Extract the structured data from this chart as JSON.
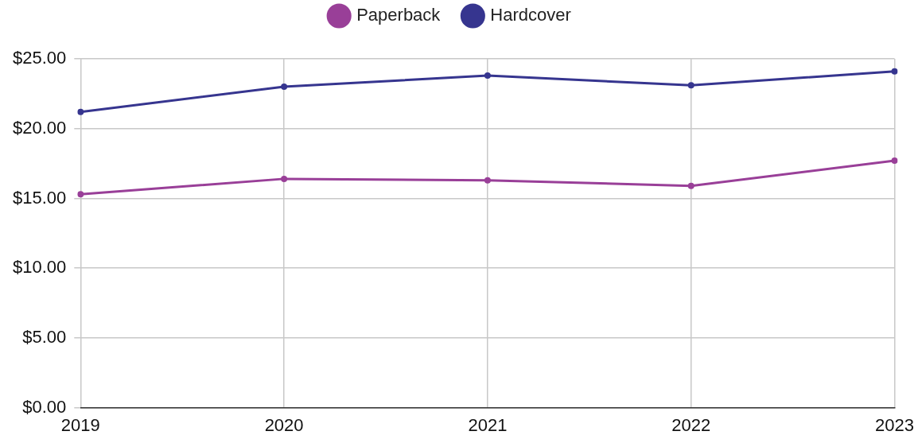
{
  "chart_data": {
    "type": "line",
    "categories": [
      "2019",
      "2020",
      "2021",
      "2022",
      "2023"
    ],
    "series": [
      {
        "name": "Paperback",
        "color": "#993f98",
        "values": [
          15.3,
          16.4,
          16.3,
          15.9,
          17.7
        ]
      },
      {
        "name": "Hardcover",
        "color": "#36358f",
        "values": [
          21.2,
          23.0,
          23.8,
          23.1,
          24.1
        ]
      }
    ],
    "ylim": [
      0,
      25
    ],
    "yticks": [
      {
        "value": 0,
        "label": "$0.00"
      },
      {
        "value": 5,
        "label": "$5.00"
      },
      {
        "value": 10,
        "label": "$10.00"
      },
      {
        "value": 15,
        "label": "$15.00"
      },
      {
        "value": 20,
        "label": "$20.00"
      },
      {
        "value": 25,
        "label": "$25.00"
      }
    ],
    "grid": true,
    "legend": "top",
    "marker": "circle",
    "line_style": "solid"
  }
}
